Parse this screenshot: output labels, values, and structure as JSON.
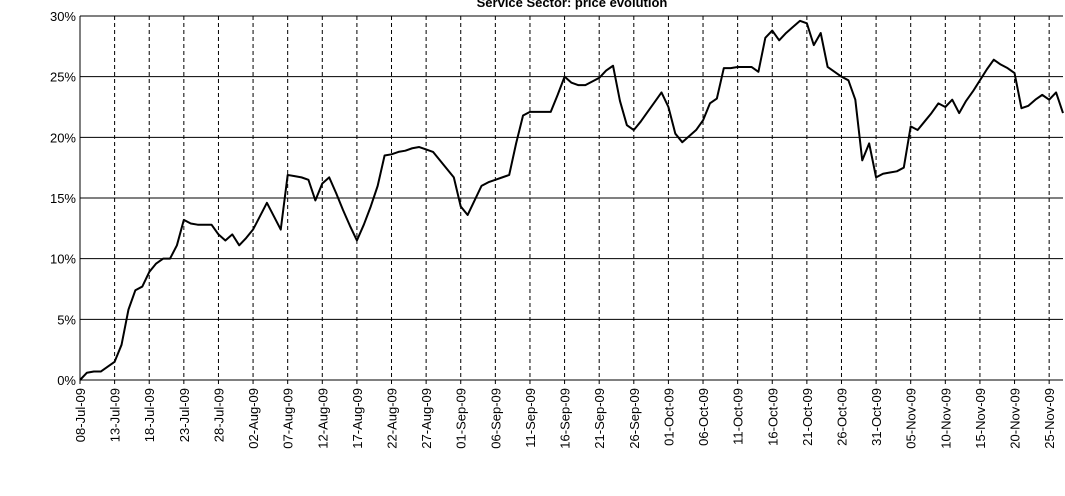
{
  "chart_data": {
    "type": "line",
    "title": "Service Sector: price evolution",
    "categories": [
      "08-Jul-09",
      null,
      null,
      null,
      null,
      "13-Jul-09",
      null,
      null,
      null,
      null,
      "18-Jul-09",
      null,
      null,
      null,
      null,
      "23-Jul-09",
      null,
      null,
      null,
      null,
      "28-Jul-09",
      null,
      null,
      null,
      null,
      "02-Aug-09",
      null,
      null,
      null,
      null,
      "07-Aug-09",
      null,
      null,
      null,
      null,
      "12-Aug-09",
      null,
      null,
      null,
      null,
      "17-Aug-09",
      null,
      null,
      null,
      null,
      "22-Aug-09",
      null,
      null,
      null,
      null,
      "27-Aug-09",
      null,
      null,
      null,
      null,
      "01-Sep-09",
      null,
      null,
      null,
      null,
      "06-Sep-09",
      null,
      null,
      null,
      null,
      "11-Sep-09",
      null,
      null,
      null,
      null,
      "16-Sep-09",
      null,
      null,
      null,
      null,
      "21-Sep-09",
      null,
      null,
      null,
      null,
      "26-Sep-09",
      null,
      null,
      null,
      null,
      "01-Oct-09",
      null,
      null,
      null,
      null,
      "06-Oct-09",
      null,
      null,
      null,
      null,
      "11-Oct-09",
      null,
      null,
      null,
      null,
      "16-Oct-09",
      null,
      null,
      null,
      null,
      "21-Oct-09",
      null,
      null,
      null,
      null,
      "26-Oct-09",
      null,
      null,
      null,
      null,
      "31-Oct-09",
      null,
      null,
      null,
      null,
      "05-Nov-09",
      null,
      null,
      null,
      null,
      "10-Nov-09",
      null,
      null,
      null,
      null,
      "15-Nov-09",
      null,
      null,
      null,
      null,
      "20-Nov-09",
      null,
      null,
      null,
      null,
      "25-Nov-09",
      null,
      null
    ],
    "values": [
      0,
      0.6,
      0.7,
      0.7,
      1.1,
      1.5,
      2.9,
      5.8,
      7.4,
      7.7,
      8.9,
      9.6,
      10,
      10,
      11.1,
      13.2,
      12.9,
      12.8,
      12.8,
      12.8,
      12,
      11.5,
      12,
      11.1,
      11.7,
      12.4,
      13.5,
      14.6,
      13.5,
      12.4,
      16.9,
      16.8,
      16.7,
      16.5,
      14.8,
      16.2,
      16.7,
      15.4,
      14,
      12.7,
      11.5,
      12.8,
      14.3,
      16,
      18.5,
      18.6,
      18.8,
      18.9,
      19.1,
      19.2,
      19,
      18.8,
      18.1,
      17.4,
      16.7,
      14.3,
      13.6,
      14.8,
      16,
      16.3,
      16.5,
      16.7,
      16.9,
      19.5,
      21.8,
      22.1,
      22.1,
      22.1,
      22.1,
      23.5,
      25,
      24.5,
      24.3,
      24.3,
      24.6,
      24.9,
      25.5,
      25.9,
      23,
      21,
      20.6,
      21.3,
      22.1,
      22.9,
      23.7,
      22.5,
      20.3,
      19.6,
      20.1,
      20.6,
      21.4,
      22.8,
      23.2,
      25.7,
      25.7,
      25.8,
      25.8,
      25.8,
      25.4,
      28.2,
      28.8,
      28,
      28.6,
      29.1,
      29.6,
      29.4,
      27.6,
      28.6,
      25.8,
      25.4,
      25,
      24.7,
      23.1,
      18.1,
      19.5,
      16.7,
      17,
      17.1,
      17.2,
      17.5,
      20.9,
      20.6,
      21.3,
      22,
      22.8,
      22.5,
      23.1,
      22,
      23,
      23.8,
      24.7,
      25.6,
      26.4,
      26,
      25.7,
      25.3,
      22.4,
      22.6,
      23.1,
      23.5,
      23.1,
      23.7,
      22
    ],
    "color": "#000000",
    "ylim": [
      0,
      30
    ],
    "yticks": [
      {
        "value": 0,
        "label": "0%"
      },
      {
        "value": 5,
        "label": "5%"
      },
      {
        "value": 10,
        "label": "10%"
      },
      {
        "value": 15,
        "label": "15%"
      },
      {
        "value": 20,
        "label": "20%"
      },
      {
        "value": 25,
        "label": "25%"
      },
      {
        "value": 30,
        "label": "30%"
      }
    ],
    "grid": true
  }
}
